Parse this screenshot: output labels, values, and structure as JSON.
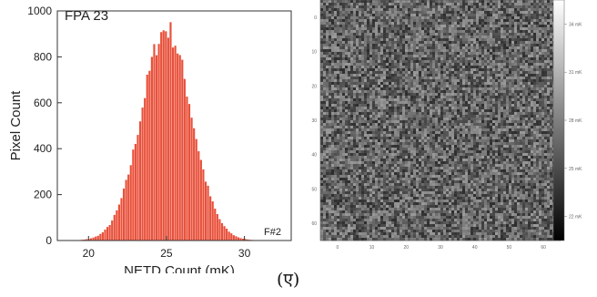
{
  "chart_data": [
    {
      "type": "bar",
      "label": "FPA 23",
      "corner_label": "F#2",
      "xlabel": "NETD Count (mK)",
      "ylabel": "Pixel Count",
      "xlim": [
        18,
        33
      ],
      "ylim": [
        0,
        1000
      ],
      "x_ticks": [
        20,
        25,
        30
      ],
      "y_ticks": [
        0,
        200,
        400,
        600,
        800,
        1000
      ],
      "distribution": {
        "mean": 25.0,
        "sd": 1.6,
        "peak": 920
      },
      "bar_color": "#e8503a",
      "grid": false
    },
    {
      "type": "heatmap",
      "colorbar_ticks": [
        "22 mK",
        "25 mK",
        "28 mK",
        "31 mK",
        "34 mK"
      ],
      "colormap": [
        "#000000",
        "#ffffff"
      ],
      "x_ticks": [
        "0",
        "10",
        "20",
        "30",
        "40",
        "50",
        "60"
      ],
      "y_ticks": [
        "0",
        "10",
        "20",
        "30",
        "40",
        "50",
        "60"
      ]
    }
  ],
  "caption": "(ए)"
}
